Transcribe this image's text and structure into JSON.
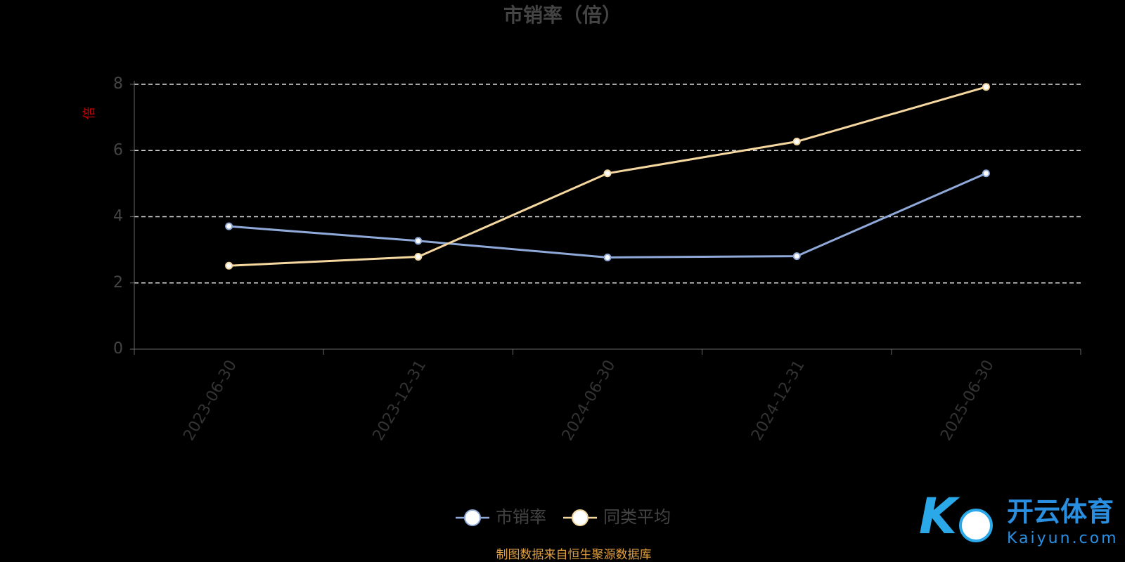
{
  "chart_data": {
    "type": "line",
    "title": "市销率（倍）",
    "y_label": "倍",
    "categories": [
      "2023-06-30",
      "2023-12-31",
      "2024-06-30",
      "2024-12-31",
      "2025-06-30"
    ],
    "series": [
      {
        "name": "市销率",
        "color": "#8fa9d9",
        "values": [
          3.71,
          3.27,
          2.77,
          2.81,
          5.31
        ]
      },
      {
        "name": "同类平均",
        "color": "#f5d7a0",
        "values": [
          2.52,
          2.79,
          5.31,
          6.27,
          7.92
        ]
      }
    ],
    "ylim": [
      0,
      8
    ],
    "yticks": [
      0,
      2,
      4,
      6,
      8
    ],
    "grid": true,
    "source": "制图数据来自恒生聚源数据库"
  },
  "watermark": {
    "title": "开云体育",
    "subtitle": "Kaiyun.com"
  }
}
